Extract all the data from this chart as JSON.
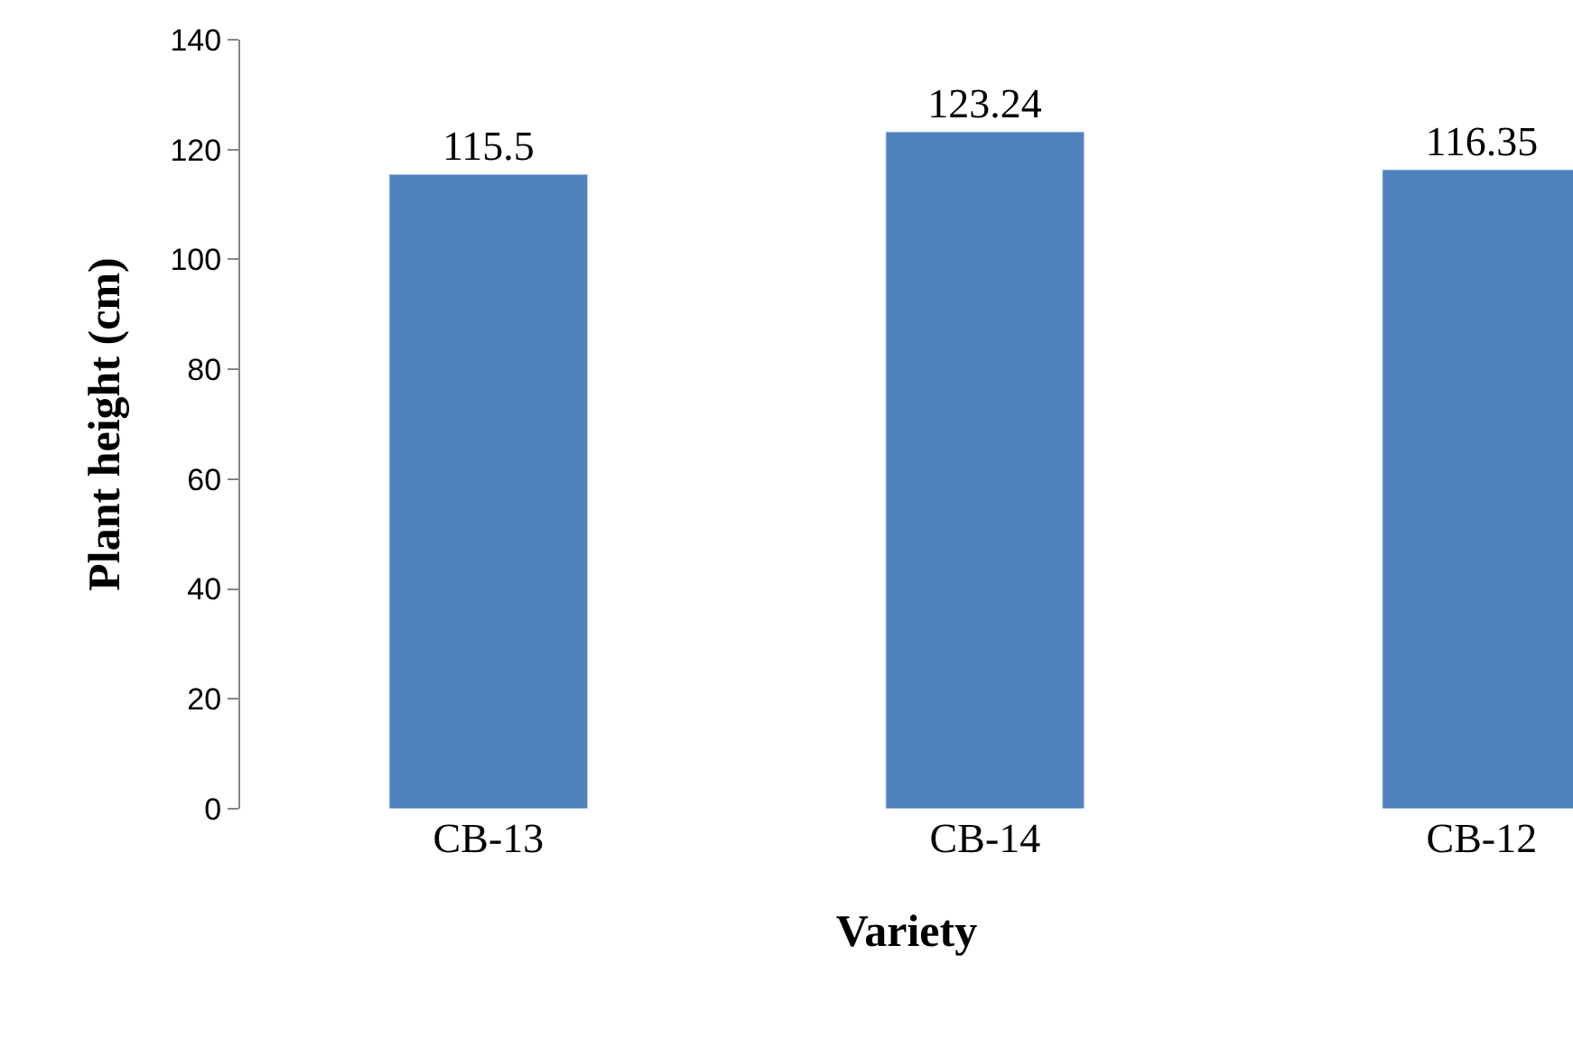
{
  "chart_data": {
    "type": "bar",
    "xlabel": "Variety",
    "ylabel": "Plant height (cm)",
    "categories": [
      "CB-13",
      "CB-14",
      "CB-12"
    ],
    "values": [
      115.5,
      123.24,
      116.35
    ],
    "color": "#4f81bd",
    "data_labels": true,
    "ylim": [
      0,
      140
    ],
    "yticks": [
      0,
      20,
      40,
      60,
      80,
      100,
      120,
      140
    ]
  }
}
